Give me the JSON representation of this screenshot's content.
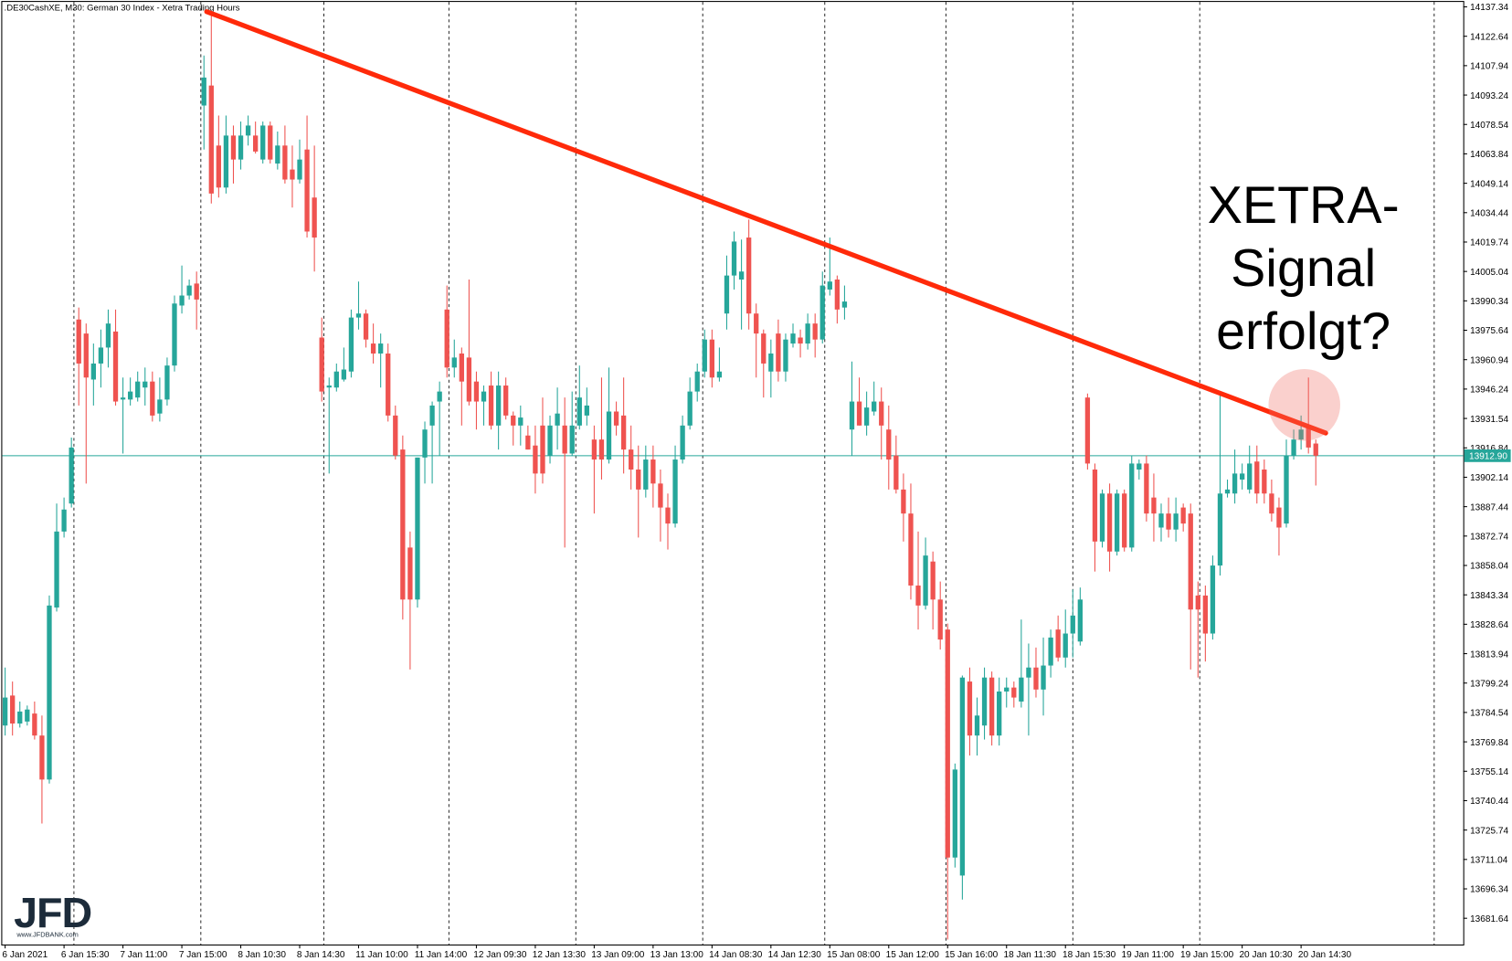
{
  "chart_data": {
    "type": "candlestick",
    "title": ".DE30CashXE, M30:  German 30 Index  - Xetra Trading Hours",
    "annotation": [
      "XETRA-",
      "Signal",
      "erfolgt?"
    ],
    "logo": "JFD",
    "logo_url": "www.JFDBANK.com",
    "up_color": "#26a69a",
    "down_color": "#ef5350",
    "last_price": {
      "value": 13912.9,
      "label": "13912.90"
    },
    "ylim": [
      13668.5,
      14139.8
    ],
    "yticks": [
      14137.34,
      14122.64,
      14107.94,
      14093.24,
      14078.54,
      14063.84,
      14049.14,
      14034.44,
      14019.74,
      14005.04,
      13990.34,
      13975.64,
      13960.94,
      13946.24,
      13931.54,
      13916.84,
      13902.14,
      13887.44,
      13872.74,
      13858.04,
      13843.34,
      13828.64,
      13813.94,
      13799.24,
      13784.54,
      13769.84,
      13755.14,
      13740.44,
      13725.74,
      13711.04,
      13696.34,
      13681.64
    ],
    "categories": [
      "6 Jan 2021",
      null,
      null,
      null,
      null,
      null,
      null,
      null,
      "6 Jan 15:30",
      null,
      null,
      null,
      null,
      null,
      null,
      null,
      "7 Jan 11:00",
      null,
      null,
      null,
      null,
      null,
      null,
      null,
      "7 Jan 15:00",
      null,
      null,
      null,
      null,
      null,
      null,
      null,
      "8 Jan 10:30",
      null,
      null,
      null,
      null,
      null,
      null,
      null,
      "8 Jan 14:30",
      null,
      null,
      null,
      null,
      null,
      null,
      null,
      "11 Jan 10:00",
      null,
      null,
      null,
      null,
      null,
      null,
      null,
      "11 Jan 14:00",
      null,
      null,
      null,
      null,
      null,
      null,
      null,
      "12 Jan 09:30",
      null,
      null,
      null,
      null,
      null,
      null,
      null,
      "12 Jan 13:30",
      null,
      null,
      null,
      null,
      null,
      null,
      null,
      "13 Jan 09:00",
      null,
      null,
      null,
      null,
      null,
      null,
      null,
      "13 Jan 13:00",
      null,
      null,
      null,
      null,
      null,
      null,
      null,
      "14 Jan 08:30",
      null,
      null,
      null,
      null,
      null,
      null,
      null,
      "14 Jan 12:30",
      null,
      null,
      null,
      null,
      null,
      null,
      null,
      "15 Jan 08:00",
      null,
      null,
      null,
      null,
      null,
      null,
      null,
      "15 Jan 12:00",
      null,
      null,
      null,
      null,
      null,
      null,
      null,
      "15 Jan 16:00",
      null,
      null,
      null,
      null,
      null,
      null,
      null,
      "18 Jan 11:30",
      null,
      null,
      null,
      null,
      null,
      null,
      null,
      "18 Jan 15:30",
      null,
      null,
      null,
      null,
      null,
      null,
      null,
      "19 Jan 11:00",
      null,
      null,
      null,
      null,
      null,
      null,
      null,
      "19 Jan 15:00",
      null,
      null,
      null,
      null,
      null,
      null,
      null,
      "20 Jan 10:30",
      null,
      null,
      null,
      null,
      null,
      null,
      null,
      "20 Jan 14:30",
      null,
      null
    ],
    "open": [
      13778,
      13793,
      13779,
      13780,
      13784,
      13773,
      13751,
      13837,
      13875,
      13889,
      13981,
      13974,
      13951,
      13959,
      13967,
      13975,
      13941,
      13941,
      13942,
      13947,
      13950,
      13934,
      13941,
      13958,
      13988,
      13993,
      13999,
      14088,
      14098,
      14068,
      14047,
      14073,
      14061,
      14073,
      14073,
      14061,
      14078,
      14059,
      14068,
      14056,
      14051,
      14066,
      14042,
      13972,
      13947,
      13947,
      13951,
      13955,
      13982,
      13984,
      13969,
      13964,
      13964,
      13933,
      13916,
      13867,
      13841,
      13912,
      13928,
      13940,
      13986,
      13957,
      13964,
      13962,
      13950,
      13940,
      13948,
      13928,
      13948,
      13933,
      13928,
      13923,
      13918,
      13928,
      13913,
      13928,
      13928,
      13914,
      13928,
      13933,
      13921,
      13921,
      13911,
      13935,
      13933,
      13916,
      13906,
      13896,
      13911,
      13899,
      13887,
      13879,
      13911,
      13928,
      13945,
      13955,
      13971,
      13952,
      13984,
      14003,
      14001,
      14022,
      13984,
      13974,
      13955,
      13974,
      13955,
      13969,
      13972,
      13969,
      13979,
      13971,
      13996,
      14001,
      13987,
      13926,
      13940,
      13928,
      13935,
      13940,
      13926,
      13913,
      13896,
      13884,
      13848,
      13838,
      13860,
      13841,
      13826,
      13712,
      13703,
      13800,
      13773,
      13778,
      13802,
      13773,
      13795,
      13797,
      13790,
      13802,
      13807,
      13796,
      13808,
      13826,
      13812,
      13824,
      13820,
      13942,
      13906,
      13870,
      13894,
      13865,
      13894,
      13867,
      13906,
      13909,
      13892,
      13877,
      13884,
      13876,
      13887,
      13884,
      13843,
      13843,
      13824,
      13858,
      13894,
      13894,
      13901,
      13896,
      13910,
      13906,
      13894,
      13887,
      13879,
      13913,
      13921,
      13928,
      13919
    ],
    "high": [
      13807,
      13800,
      13790,
      13788,
      13790,
      13783,
      13843,
      13889,
      13892,
      13922,
      13987,
      13979,
      13969,
      13976,
      13986,
      13986,
      13952,
      13952,
      13955,
      13957,
      13955,
      13952,
      13962,
      13993,
      14008,
      14001,
      14005,
      14113,
      14135,
      14083,
      14083,
      14078,
      14080,
      14083,
      14080,
      14080,
      14080,
      14075,
      14078,
      14068,
      14071,
      14083,
      14068,
      13982,
      13952,
      13959,
      13967,
      13986,
      14000,
      13986,
      13979,
      13974,
      13969,
      13938,
      13923,
      13875,
      13912,
      13930,
      13940,
      13950,
      13998,
      13971,
      13967,
      14001,
      13955,
      13948,
      13955,
      13955,
      13952,
      13935,
      13938,
      13928,
      13928,
      13942,
      13933,
      13947,
      13942,
      13945,
      13958,
      13947,
      13928,
      13952,
      13957,
      13940,
      13952,
      13928,
      13918,
      13918,
      13918,
      13906,
      13894,
      13918,
      13933,
      13952,
      13959,
      13976,
      13976,
      13967,
      14013,
      14025,
      14021,
      14031,
      13989,
      13976,
      13971,
      13981,
      13974,
      13979,
      13976,
      13984,
      13984,
      14005,
      14022,
      14003,
      13998,
      13960,
      13952,
      13945,
      13950,
      13947,
      13938,
      13923,
      13904,
      13899,
      13875,
      13872,
      13865,
      13850,
      13829,
      13759,
      13803,
      13807,
      13792,
      13807,
      13805,
      13802,
      13802,
      13800,
      13831,
      13819,
      13817,
      13822,
      13826,
      13833,
      13836,
      13846,
      13847,
      13944,
      13909,
      13896,
      13899,
      13896,
      13896,
      13913,
      13911,
      13913,
      13904,
      13889,
      13892,
      13892,
      13889,
      13889,
      13850,
      13848,
      13863,
      13944,
      13901,
      13916,
      13909,
      13918,
      13918,
      13911,
      13901,
      13892,
      13921,
      13926,
      13933,
      13952,
      13921
    ],
    "low": [
      13773,
      13773,
      13777,
      13778,
      13771,
      13729,
      13749,
      13835,
      13872,
      13887,
      13938,
      13899,
      13938,
      13947,
      13957,
      13938,
      13914,
      13938,
      13940,
      13938,
      13930,
      13930,
      13938,
      13955,
      13984,
      13991,
      13976,
      14066,
      14039,
      14042,
      14044,
      14049,
      14056,
      14068,
      14064,
      14059,
      14059,
      14056,
      14049,
      14037,
      14049,
      14022,
      14005,
      13940,
      13904,
      13945,
      13950,
      13952,
      13976,
      13967,
      13959,
      13947,
      13930,
      13911,
      13831,
      13806,
      13837,
      13899,
      13899,
      13913,
      13952,
      13952,
      13928,
      13938,
      13926,
      13928,
      13926,
      13916,
      13931,
      13918,
      13918,
      13916,
      13894,
      13899,
      13909,
      13916,
      13867,
      13913,
      13926,
      13928,
      13884,
      13901,
      13909,
      13923,
      13904,
      13896,
      13872,
      13892,
      13887,
      13870,
      13866,
      13877,
      13909,
      13926,
      13940,
      13952,
      13947,
      13950,
      13976,
      13996,
      13976,
      13976,
      13952,
      13942,
      13942,
      13950,
      13950,
      13967,
      13962,
      13966,
      13962,
      13969,
      13993,
      13979,
      13981,
      13913,
      13928,
      13923,
      13933,
      13911,
      13896,
      13894,
      13870,
      13841,
      13826,
      13836,
      13826,
      13816,
      13671,
      13707,
      13691,
      13763,
      13763,
      13771,
      13768,
      13768,
      13787,
      13787,
      13787,
      13773,
      13792,
      13783,
      13802,
      13810,
      13807,
      13812,
      13818,
      13906,
      13855,
      13867,
      13855,
      13863,
      13865,
      13865,
      13901,
      13880,
      13870,
      13870,
      13872,
      13870,
      13875,
      13806,
      13802,
      13810,
      13821,
      13853,
      13892,
      13889,
      13896,
      13894,
      13889,
      13889,
      13880,
      13863,
      13877,
      13911,
      13916,
      13914,
      13898
    ],
    "close": [
      13792,
      13779,
      13785,
      13786,
      13773,
      13751,
      13838,
      13875,
      13886,
      13917,
      13959,
      13952,
      13959,
      13967,
      13979,
      13940,
      13942,
      13945,
      13950,
      13950,
      13933,
      13941,
      13958,
      13989,
      13993,
      13998,
      13991,
      14102,
      14044,
      14047,
      14073,
      14061,
      14073,
      14078,
      14065,
      14078,
      14061,
      14068,
      14051,
      14051,
      14061,
      14025,
      14022,
      13945,
      13948,
      13955,
      13956,
      13982,
      13984,
      13971,
      13964,
      13969,
      13933,
      13913,
      13841,
      13841,
      13912,
      13926,
      13938,
      13945,
      13957,
      13962,
      13950,
      13940,
      13940,
      13945,
      13928,
      13948,
      13933,
      13928,
      13932,
      13916,
      13904,
      13904,
      13928,
      13934,
      13914,
      13928,
      13942,
      13938,
      13911,
      13911,
      13935,
      13928,
      13916,
      13906,
      13896,
      13911,
      13899,
      13887,
      13879,
      13911,
      13928,
      13945,
      13955,
      13971,
      13952,
      13955,
      14003,
      14020,
      14005,
      13984,
      13974,
      13959,
      13964,
      13955,
      13971,
      13974,
      13969,
      13979,
      13971,
      13998,
      14000,
      13986,
      13990,
      13940,
      13928,
      13937,
      13940,
      13928,
      13911,
      13896,
      13884,
      13848,
      13838,
      13863,
      13841,
      13821,
      13712,
      13756,
      13802,
      13773,
      13783,
      13802,
      13773,
      13795,
      13797,
      13792,
      13802,
      13807,
      13796,
      13808,
      13822,
      13812,
      13824,
      13833,
      13841,
      13909,
      13870,
      13894,
      13865,
      13894,
      13867,
      13909,
      13909,
      13884,
      13884,
      13884,
      13876,
      13884,
      13879,
      13836,
      13836,
      13824,
      13858,
      13894,
      13896,
      13904,
      13904,
      13909,
      13894,
      13894,
      13884,
      13877,
      13913,
      13921,
      13926,
      13917,
      13912.9
    ]
  }
}
